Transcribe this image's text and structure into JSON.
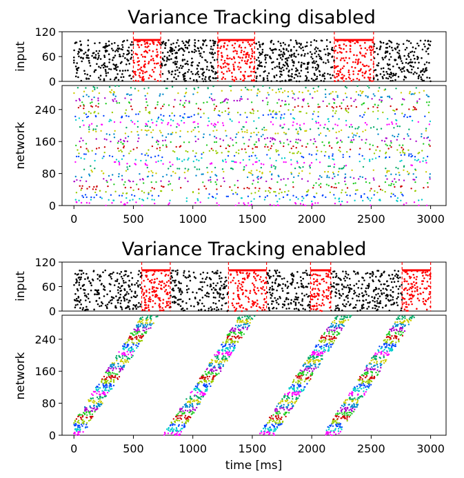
{
  "chart_data": [
    {
      "type": "scatter",
      "kind": "raster",
      "title": "Variance Tracking disabled",
      "input_panel": {
        "ylabel": "input",
        "ylim": [
          0,
          120
        ],
        "yticks": [
          0,
          60,
          120
        ],
        "neurons": 100,
        "background_color": "#000000",
        "stimulus_color": "#ff0000",
        "stimulus_intervals": [
          [
            500,
            730
          ],
          [
            1210,
            1520
          ],
          [
            2190,
            2520
          ]
        ],
        "stimulus_bar_y": 100
      },
      "network_panel": {
        "ylabel": "network",
        "ylim": [
          0,
          300
        ],
        "yticks": [
          0,
          80,
          160,
          240
        ],
        "pattern": "asynchronous",
        "neurons": 300
      },
      "xlim": [
        -100,
        3130
      ],
      "xticks": [
        0,
        500,
        1000,
        1500,
        2000,
        2500,
        3000
      ],
      "xlabel": ""
    },
    {
      "type": "scatter",
      "kind": "raster",
      "title": "Variance Tracking enabled",
      "input_panel": {
        "ylabel": "input",
        "ylim": [
          0,
          120
        ],
        "yticks": [
          0,
          60,
          120
        ],
        "neurons": 100,
        "background_color": "#000000",
        "stimulus_color": "#ff0000",
        "stimulus_intervals": [
          [
            570,
            810
          ],
          [
            1300,
            1620
          ],
          [
            1990,
            2160
          ],
          [
            2760,
            3000
          ]
        ],
        "stimulus_bar_y": 100
      },
      "network_panel": {
        "ylabel": "network",
        "ylim": [
          0,
          300
        ],
        "yticks": [
          0,
          80,
          160,
          240
        ],
        "pattern": "sequential",
        "neurons": 300,
        "sequence_starts": [
          0,
          820,
          1620,
          2160
        ]
      },
      "xlim": [
        -100,
        3130
      ],
      "xticks": [
        0,
        500,
        1000,
        1500,
        2000,
        2500,
        3000
      ],
      "xlabel": "time [ms]"
    }
  ],
  "colors": [
    "#ff00ff",
    "#00cccc",
    "#0044ff",
    "#99cc00",
    "#cc0000",
    "#22cc22",
    "#aa00cc",
    "#0088cc",
    "#cccc00",
    "#00aa66"
  ]
}
